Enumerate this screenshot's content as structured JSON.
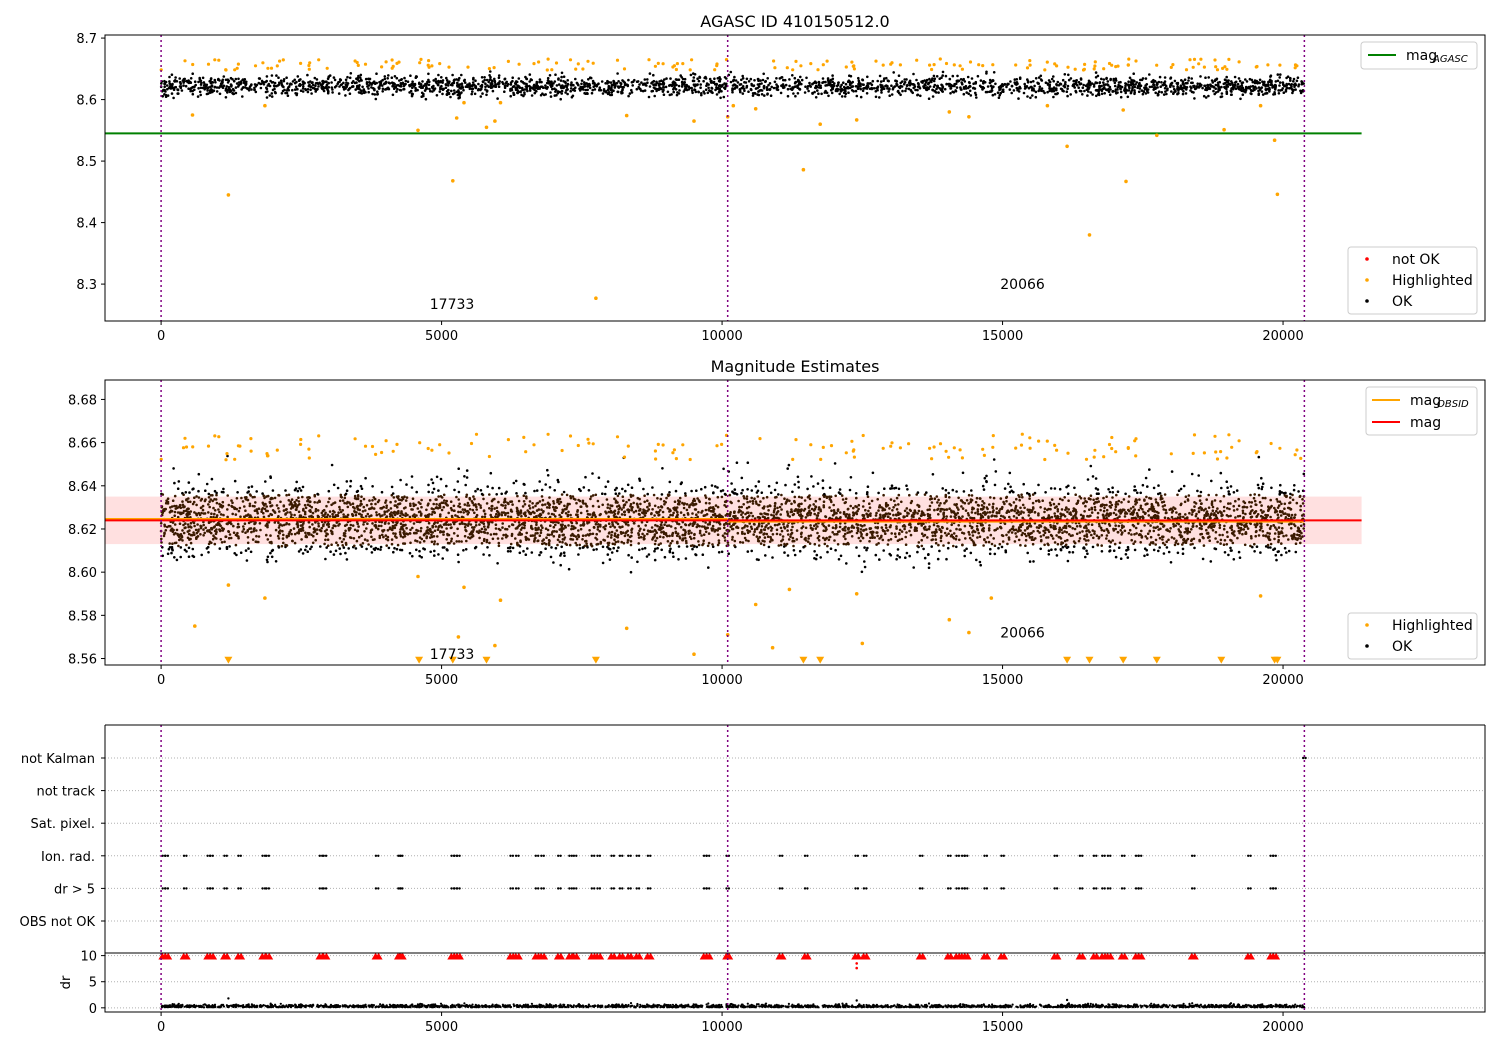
{
  "chart_data": [
    {
      "type": "scatter",
      "title": "AGASC ID 410150512.0",
      "xlim": [
        -1000,
        23600
      ],
      "ylim": [
        8.24,
        8.705
      ],
      "xticks": [
        0,
        5000,
        10000,
        15000,
        20000
      ],
      "yticks": [
        8.3,
        8.4,
        8.5,
        8.6,
        8.7
      ],
      "vlines": [
        0,
        10100,
        20380
      ],
      "annotations": [
        {
          "text": "17733",
          "x": 4700,
          "y": 8.268
        },
        {
          "text": "20066",
          "x": 14870,
          "y": 8.3
        }
      ],
      "series": [
        {
          "name": "mag_AGASC",
          "kind": "hline",
          "y": 8.545,
          "x": [
            -1000,
            21400
          ],
          "color": "#008000"
        },
        {
          "name": "OK",
          "color": "#000000",
          "x": [
            0,
            20380
          ],
          "y_band": [
            8.595,
            8.65
          ],
          "y_center": 8.622
        },
        {
          "name": "Highlighted",
          "color": "#ffa500",
          "points": [
            [
              560,
              8.575
            ],
            [
              1200,
              8.445
            ],
            [
              1850,
              8.59
            ],
            [
              4580,
              8.55
            ],
            [
              5200,
              8.468
            ],
            [
              5270,
              8.57
            ],
            [
              5400,
              8.595
            ],
            [
              5800,
              8.555
            ],
            [
              5950,
              8.565
            ],
            [
              6050,
              8.595
            ],
            [
              7750,
              8.277
            ],
            [
              8300,
              8.574
            ],
            [
              9500,
              8.565
            ],
            [
              10100,
              8.572
            ],
            [
              10200,
              8.59
            ],
            [
              10600,
              8.585
            ],
            [
              11450,
              8.486
            ],
            [
              11750,
              8.56
            ],
            [
              12400,
              8.567
            ],
            [
              14050,
              8.58
            ],
            [
              14400,
              8.572
            ],
            [
              15800,
              8.59
            ],
            [
              16150,
              8.524
            ],
            [
              16550,
              8.38
            ],
            [
              17150,
              8.583
            ],
            [
              17200,
              8.467
            ],
            [
              17750,
              8.542
            ],
            [
              18950,
              8.551
            ],
            [
              19600,
              8.59
            ],
            [
              19850,
              8.534
            ],
            [
              19900,
              8.446
            ]
          ]
        },
        {
          "name": "not OK",
          "color": "#ff0000",
          "points": []
        }
      ],
      "legend_upper": {
        "position": "top-right",
        "entries": [
          {
            "label": "mag",
            "sub": "AGASC",
            "color": "#008000"
          }
        ]
      },
      "legend_lower": {
        "position": "bottom-right",
        "entries": [
          {
            "label": "not OK",
            "color": "#ff0000"
          },
          {
            "label": "Highlighted",
            "color": "#ffa500"
          },
          {
            "label": "OK",
            "color": "#000000"
          }
        ]
      }
    },
    {
      "type": "scatter",
      "title": "Magnitude Estimates",
      "xlim": [
        -1000,
        23600
      ],
      "ylim": [
        8.557,
        8.689
      ],
      "xticks": [
        0,
        5000,
        10000,
        15000,
        20000
      ],
      "yticks": [
        8.56,
        8.58,
        8.6,
        8.62,
        8.64,
        8.66,
        8.68
      ],
      "vlines": [
        0,
        10100,
        20380
      ],
      "annotations": [
        {
          "text": "17733",
          "x": 4700,
          "y": 8.562
        },
        {
          "text": "20066",
          "x": 14870,
          "y": 8.572
        }
      ],
      "band": {
        "y": [
          8.613,
          8.635
        ],
        "x": [
          -1000,
          21400
        ],
        "color": "#ffcccc"
      },
      "series": [
        {
          "name": "mag_OBSID",
          "kind": "steps",
          "color": "#ffa500",
          "x": [
            -1000,
            10100,
            20380
          ],
          "y": [
            8.6245,
            8.6235,
            8.6235
          ]
        },
        {
          "name": "mag",
          "kind": "hline",
          "y": 8.624,
          "x": [
            -1000,
            21400
          ],
          "color": "#ff0000"
        },
        {
          "name": "OK",
          "color": "#000000",
          "x": [
            0,
            20380
          ],
          "y_band": [
            8.6,
            8.655
          ],
          "y_center": 8.623
        },
        {
          "name": "Highlighted",
          "color": "#ffa500",
          "points": [
            [
              600,
              8.575
            ],
            [
              1200,
              8.594
            ],
            [
              1850,
              8.588
            ],
            [
              4580,
              8.598
            ],
            [
              5300,
              8.57
            ],
            [
              5400,
              8.593
            ],
            [
              5950,
              8.566
            ],
            [
              6050,
              8.587
            ],
            [
              8300,
              8.574
            ],
            [
              9500,
              8.562
            ],
            [
              10100,
              8.571
            ],
            [
              10600,
              8.585
            ],
            [
              10900,
              8.565
            ],
            [
              11200,
              8.592
            ],
            [
              12400,
              8.59
            ],
            [
              12500,
              8.567
            ],
            [
              14050,
              8.578
            ],
            [
              14400,
              8.572
            ],
            [
              14800,
              8.588
            ],
            [
              19600,
              8.589
            ]
          ]
        },
        {
          "name": "Highlighted (below range)",
          "color": "#ffa500",
          "kind": "triangles",
          "y": 8.5595,
          "x": [
            1200,
            4600,
            5200,
            5800,
            7750,
            11450,
            11750,
            16150,
            16550,
            17150,
            17750,
            18900,
            19850,
            19900
          ]
        }
      ],
      "legend_upper": {
        "position": "top-right",
        "entries": [
          {
            "label": "mag",
            "sub": "OBSID",
            "color": "#ffa500"
          },
          {
            "label": "mag",
            "color": "#ff0000"
          }
        ]
      },
      "legend_lower": {
        "position": "bottom-right",
        "entries": [
          {
            "label": "Highlighted",
            "color": "#ffa500"
          },
          {
            "label": "OK",
            "color": "#000000"
          }
        ]
      }
    },
    {
      "type": "scatter",
      "title": "",
      "xlim": [
        -1000,
        23600
      ],
      "categories": [
        "OBS not OK",
        "dr > 5",
        "Ion. rad.",
        "Sat. pixel.",
        "not track",
        "not Kalman"
      ],
      "vlines": [
        0,
        10100,
        20380
      ],
      "flag_events": {
        "dr > 5": [
          50,
          100,
          430,
          850,
          900,
          1150,
          1400,
          1830,
          1900,
          2850,
          2920,
          3850,
          4250,
          4280,
          5200,
          5250,
          5300,
          6250,
          6350,
          6700,
          6800,
          7100,
          7300,
          7380,
          7700,
          7800,
          8050,
          8200,
          8350,
          8500,
          8700,
          9700,
          9750,
          10100,
          11050,
          11500,
          12400,
          12550,
          13550,
          14050,
          14200,
          14300,
          14350,
          14700,
          15000,
          15950,
          16400,
          16650,
          16800,
          16900,
          17150,
          17400,
          17450,
          18400,
          19400,
          19800,
          19850
        ],
        "Ion. rad.": [
          50,
          100,
          430,
          850,
          900,
          1150,
          1400,
          1830,
          1900,
          2850,
          2920,
          3850,
          4250,
          4280,
          5200,
          5250,
          5300,
          6250,
          6350,
          6700,
          6800,
          7100,
          7300,
          7380,
          7700,
          7800,
          8050,
          8200,
          8350,
          8500,
          8700,
          9700,
          9750,
          10100,
          11050,
          11500,
          12400,
          12550,
          13550,
          14050,
          14200,
          14300,
          14350,
          14700,
          15000,
          15950,
          16400,
          16650,
          16800,
          16900,
          17150,
          17400,
          17450,
          18400,
          19400,
          19800,
          19850
        ],
        "not Kalman": [
          20380
        ]
      }
    },
    {
      "type": "scatter",
      "xlim": [
        -1000,
        23600
      ],
      "ylim": [
        -0.8,
        10.5
      ],
      "ylabel": "dr",
      "yticks": [
        0,
        5,
        10
      ],
      "xticks": [
        0,
        5000,
        10000,
        15000,
        20000
      ],
      "vlines": [
        0,
        10100,
        20380
      ],
      "series": [
        {
          "name": "dr OK",
          "color": "#000000",
          "x": [
            0,
            20380
          ],
          "y_band": [
            0,
            0.9
          ]
        },
        {
          "name": "dr > 5 (clipped)",
          "color": "#ff0000",
          "kind": "triangles-up",
          "y": 9.8,
          "x": [
            50,
            100,
            430,
            850,
            900,
            1150,
            1400,
            1830,
            1900,
            2850,
            2920,
            3850,
            4250,
            4280,
            5200,
            5250,
            5300,
            6250,
            6350,
            6700,
            6800,
            7100,
            7300,
            7380,
            7700,
            7800,
            8050,
            8200,
            8350,
            8500,
            8700,
            9700,
            9750,
            10100,
            11050,
            11500,
            12400,
            12550,
            13550,
            14050,
            14200,
            14300,
            14350,
            14700,
            15000,
            15950,
            16400,
            16650,
            16800,
            16900,
            17150,
            17400,
            17450,
            18400,
            19400,
            19800,
            19850
          ]
        },
        {
          "name": "dr > 5 extra",
          "color": "#ff0000",
          "points": [
            [
              12400,
              8.5
            ],
            [
              12400,
              7.6
            ]
          ]
        }
      ]
    }
  ]
}
